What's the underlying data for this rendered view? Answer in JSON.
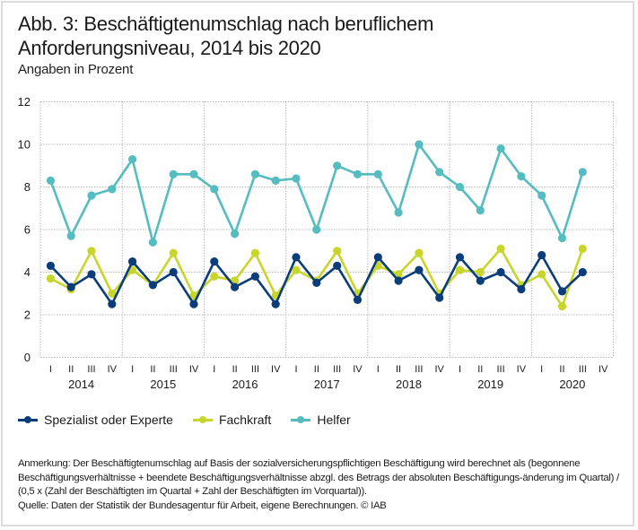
{
  "header": {
    "title": "Abb. 3: Beschäftigtenumschlag nach beruflichem Anforderungsniveau, 2014 bis 2020",
    "subtitle": "Angaben in Prozent"
  },
  "footer": {
    "note": "Anmerkung: Der Beschäftigtenumschlag auf Basis der sozialversicherungspflichtigen Beschäftigung wird berechnet als (begonnene Beschäftigungsverhältnisse + beendete Beschäftigungsverhältnisse abzgl. des Betrags der absoluten Beschäftigungs-änderung im Quartal) / (0,5 x (Zahl der Beschäftigten im Quartal + Zahl der Beschäftigten im Vorquartal)).",
    "source": "Quelle: Daten der Statistik der Bundesagentur für Arbeit, eigene Berechnungen. © IAB"
  },
  "chart_data": {
    "type": "line",
    "title": "Abb. 3: Beschäftigtenumschlag nach beruflichem Anforderungsniveau, 2014 bis 2020",
    "subtitle": "Angaben in Prozent",
    "xlabel": "",
    "ylabel": "",
    "ylim": [
      0,
      12
    ],
    "yticks": [
      0,
      2,
      4,
      6,
      8,
      10,
      12
    ],
    "grid": true,
    "legend_position": "bottom-left",
    "quarters": [
      "I",
      "II",
      "III",
      "IV"
    ],
    "years": [
      "2014",
      "2015",
      "2016",
      "2017",
      "2018",
      "2019",
      "2020"
    ],
    "x": [
      "2014 I",
      "2014 II",
      "2014 III",
      "2014 IV",
      "2015 I",
      "2015 II",
      "2015 III",
      "2015 IV",
      "2016 I",
      "2016 II",
      "2016 III",
      "2016 IV",
      "2017 I",
      "2017 II",
      "2017 III",
      "2017 IV",
      "2018 I",
      "2018 II",
      "2018 III",
      "2018 IV",
      "2019 I",
      "2019 II",
      "2019 III",
      "2019 IV",
      "2020 I",
      "2020 II",
      "2020 III",
      "2020 IV"
    ],
    "series": [
      {
        "name": "Spezialist oder Experte",
        "color": "#0b3d7a",
        "values": [
          4.3,
          3.3,
          3.9,
          2.5,
          4.5,
          3.4,
          4.0,
          2.5,
          4.5,
          3.3,
          3.8,
          2.5,
          4.7,
          3.5,
          4.3,
          2.7,
          4.7,
          3.6,
          4.1,
          2.8,
          4.7,
          3.6,
          4.0,
          3.2,
          4.8,
          3.1,
          4.0,
          null
        ]
      },
      {
        "name": "Fachkraft",
        "color": "#c8d62b",
        "values": [
          3.7,
          3.2,
          5.0,
          3.0,
          4.1,
          3.4,
          4.9,
          2.9,
          3.8,
          3.6,
          4.9,
          2.9,
          4.1,
          3.6,
          5.0,
          3.0,
          4.3,
          3.9,
          4.9,
          3.0,
          4.1,
          4.0,
          5.1,
          3.4,
          3.9,
          2.4,
          5.1,
          null
        ]
      },
      {
        "name": "Helfer",
        "color": "#55bcc0",
        "values": [
          8.3,
          5.7,
          7.6,
          7.9,
          9.3,
          5.4,
          8.6,
          8.6,
          7.9,
          5.8,
          8.6,
          8.3,
          8.4,
          6.0,
          9.0,
          8.6,
          8.6,
          6.8,
          10.0,
          8.7,
          8.0,
          6.9,
          9.8,
          8.5,
          7.6,
          5.6,
          8.7,
          null
        ]
      }
    ]
  }
}
